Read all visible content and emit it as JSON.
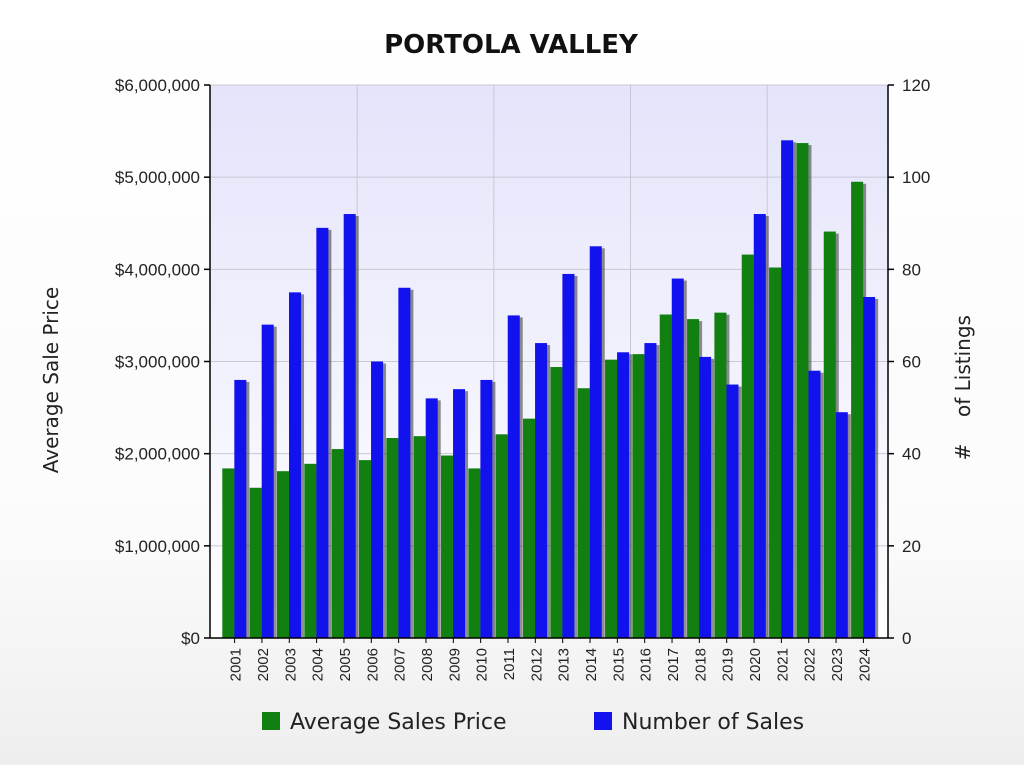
{
  "chart_data": {
    "type": "bar",
    "title": "PORTOLA VALLEY",
    "ylabel": "Average Sale Price",
    "y2label_hash": "#",
    "y2label": "of Listings",
    "categories": [
      "2001",
      "2002",
      "2003",
      "2004",
      "2005",
      "2006",
      "2007",
      "2008",
      "2009",
      "2010",
      "2011",
      "2012",
      "2013",
      "2014",
      "2015",
      "2016",
      "2017",
      "2018",
      "2019",
      "2020",
      "2021",
      "2022",
      "2023",
      "2024"
    ],
    "ylim": [
      0,
      6000000
    ],
    "y2lim": [
      0,
      120
    ],
    "yticks": [
      "$0",
      "$1,000,000",
      "$2,000,000",
      "$3,000,000",
      "$4,000,000",
      "$5,000,000",
      "$6,000,000"
    ],
    "y2ticks": [
      "0",
      "20",
      "40",
      "60",
      "80",
      "100",
      "120"
    ],
    "grid": true,
    "legend_position": "bottom",
    "series": [
      {
        "name": "Average Sales Price",
        "axis": "left",
        "color": "#118011",
        "values": [
          1840000,
          1630000,
          1810000,
          1890000,
          2050000,
          1930000,
          2170000,
          2190000,
          1980000,
          1840000,
          2210000,
          2380000,
          2940000,
          2710000,
          3020000,
          3080000,
          3510000,
          3460000,
          3530000,
          4160000,
          4020000,
          5370000,
          4410000,
          4950000
        ]
      },
      {
        "name": "Number of Sales",
        "axis": "right",
        "color": "#1212ee",
        "values": [
          56,
          68,
          75,
          89,
          92,
          60,
          76,
          52,
          54,
          56,
          70,
          64,
          79,
          85,
          62,
          64,
          78,
          61,
          55,
          92,
          108,
          58,
          49,
          74
        ]
      }
    ]
  }
}
